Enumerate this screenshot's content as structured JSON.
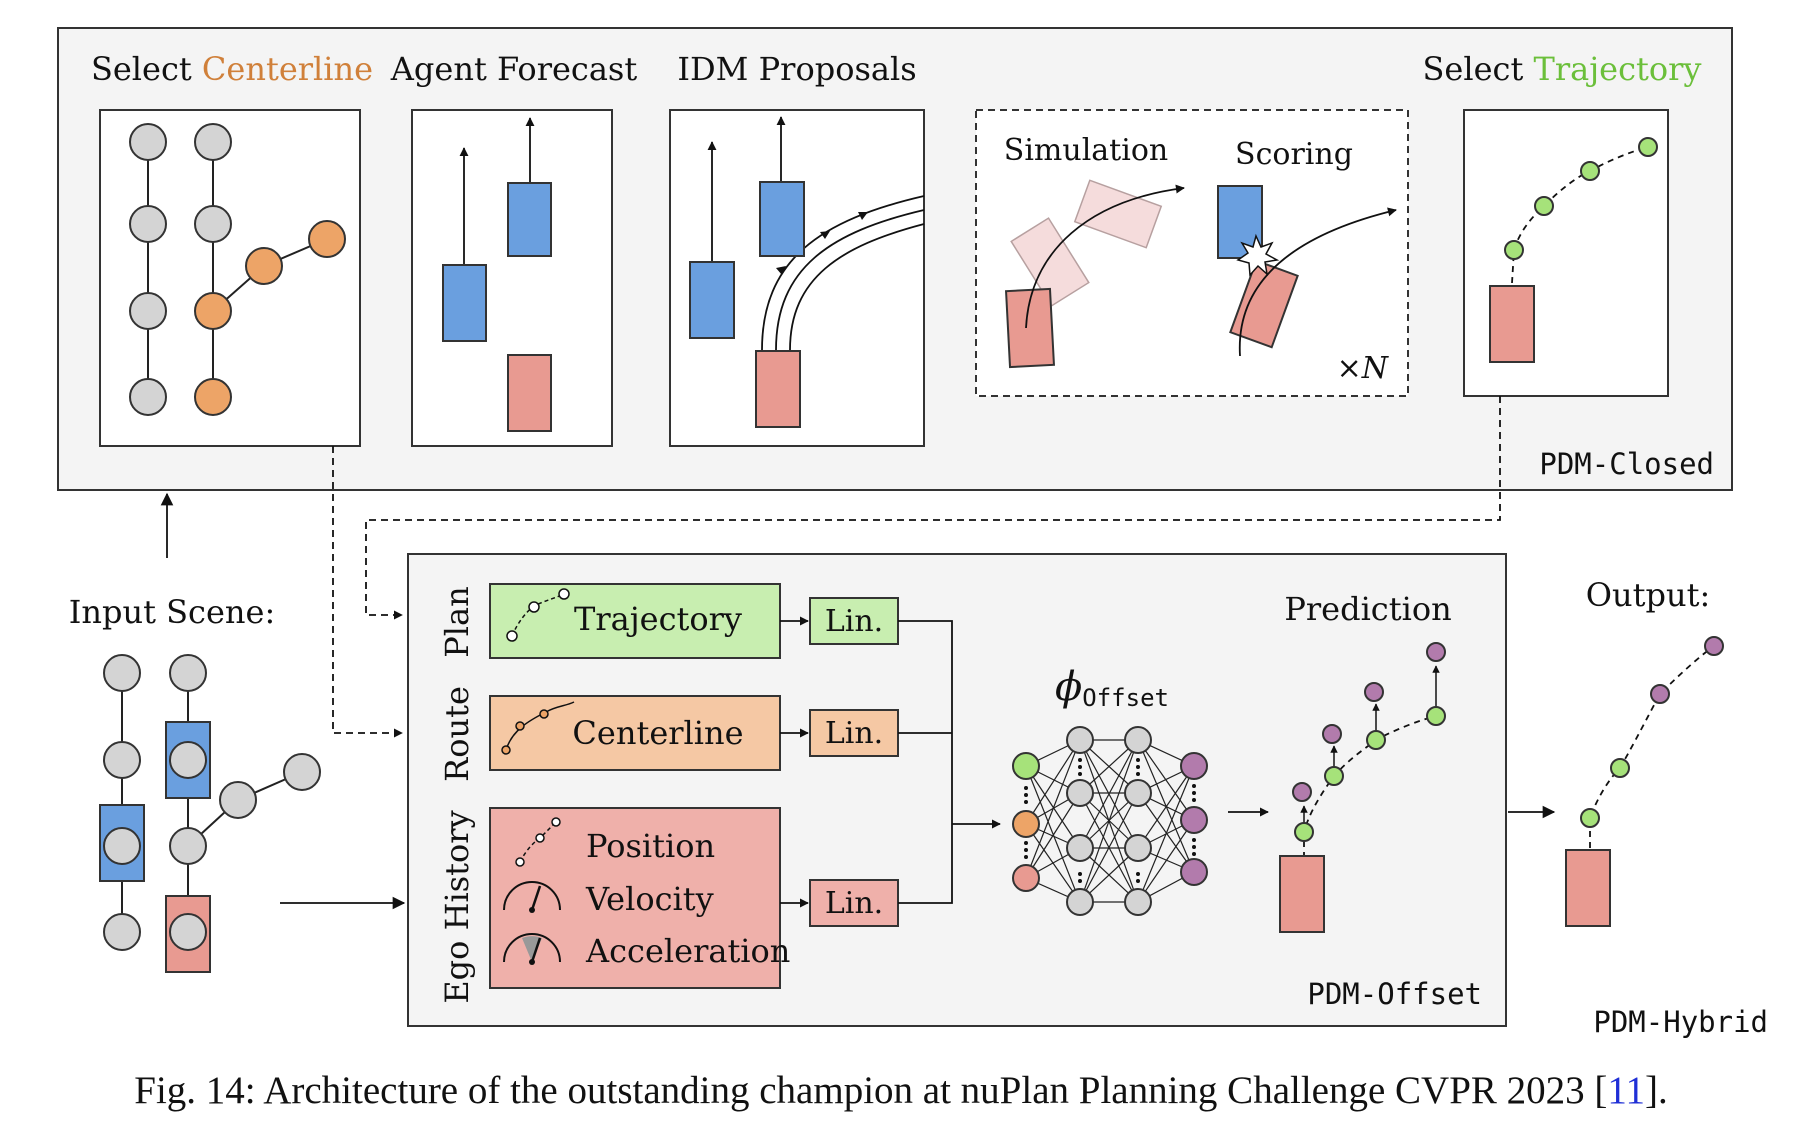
{
  "pdm_closed": {
    "label": "PDM-Closed",
    "select_centerline": {
      "prefix": "Select ",
      "highlight": "Centerline",
      "highlight_color": "#d0803a"
    },
    "agent_forecast": "Agent Forecast",
    "idm_proposals": "IDM Proposals",
    "simulation": "Simulation",
    "scoring": "Scoring",
    "times_n": "×N",
    "select_trajectory": {
      "prefix": "Select ",
      "highlight": "Trajectory",
      "highlight_color": "#6bbf3a"
    }
  },
  "input_scene": "Input Scene:",
  "pdm_offset": {
    "label": "PDM-Offset",
    "rows": [
      {
        "side_label": "Plan",
        "box_label": "Trajectory",
        "fill": "#c8eeb0",
        "lin": "Lin."
      },
      {
        "side_label": "Route",
        "box_label": "Centerline",
        "fill": "#f5c8a4",
        "lin": "Lin."
      },
      {
        "side_label": "Ego History",
        "fill": "#efb0aa",
        "lin": "Lin.",
        "items": [
          "Position",
          "Velocity",
          "Acceleration"
        ]
      }
    ],
    "phi_symbol": "ϕ",
    "phi_subscript": "Offset",
    "prediction": "Prediction"
  },
  "output": {
    "label": "Output:",
    "hybrid_label": "PDM-Hybrid"
  },
  "caption": {
    "text": "Fig. 14: Architecture of the outstanding champion at nuPlan Planning Challenge CVPR 2023 [",
    "ref": "11",
    "end": "]."
  },
  "colors": {
    "node_gray": "#d4d4d4",
    "node_orange": "#eda467",
    "node_green": "#a6e27a",
    "node_purple": "#b27bac",
    "agent_blue": "#6a9fdf",
    "ego_red": "#e89a91"
  }
}
